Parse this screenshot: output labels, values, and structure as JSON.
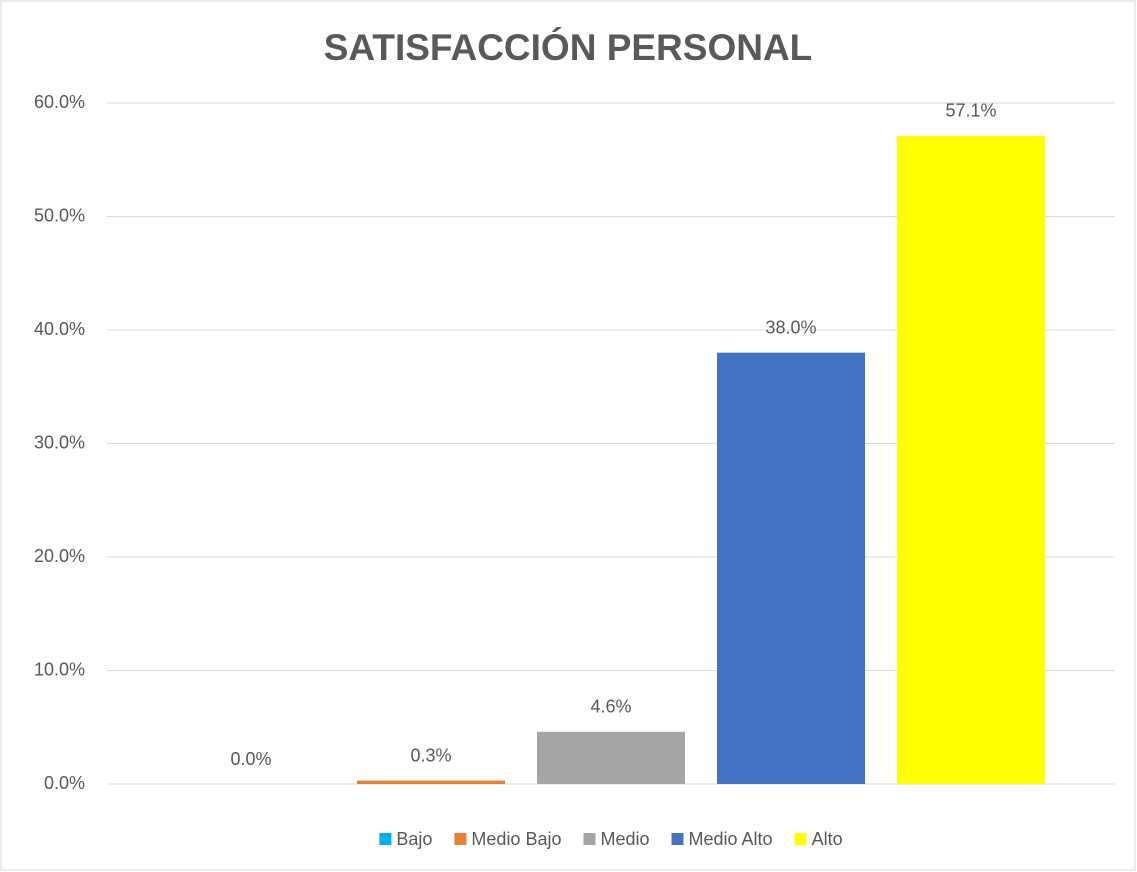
{
  "chart_data": {
    "type": "bar",
    "title": "SATISFACCIÓN PERSONAL",
    "series": [
      {
        "name": "Bajo",
        "color": "#00b0f0",
        "values": [
          0.0
        ],
        "value_labels": [
          "0.0%"
        ]
      },
      {
        "name": "Medio Bajo",
        "color": "#ed7d31",
        "values": [
          0.3
        ],
        "value_labels": [
          "0.3%"
        ]
      },
      {
        "name": "Medio",
        "color": "#a5a5a5",
        "values": [
          4.6
        ],
        "value_labels": [
          "4.6%"
        ]
      },
      {
        "name": "Medio Alto",
        "color": "#4472c4",
        "values": [
          38.0
        ],
        "value_labels": [
          "38.0%"
        ]
      },
      {
        "name": "Alto",
        "color": "#ffff00",
        "values": [
          57.1
        ],
        "value_labels": [
          "57.1%"
        ]
      }
    ],
    "ylim": [
      0,
      60
    ],
    "yticks": [
      {
        "value": 0,
        "label": "0.0%"
      },
      {
        "value": 10,
        "label": "10.0%"
      },
      {
        "value": 20,
        "label": "20.0%"
      },
      {
        "value": 30,
        "label": "30.0%"
      },
      {
        "value": 40,
        "label": "40.0%"
      },
      {
        "value": 50,
        "label": "50.0%"
      },
      {
        "value": 60,
        "label": "60.0%"
      }
    ],
    "grid": true,
    "legend": "bottom"
  }
}
